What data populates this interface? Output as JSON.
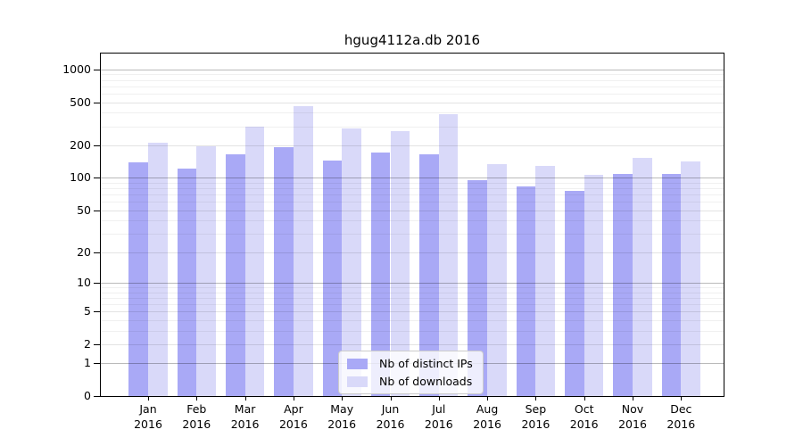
{
  "title": "hgug4112a.db 2016",
  "chart_data": {
    "type": "bar",
    "title": "hgug4112a.db 2016",
    "categories": [
      "Jan",
      "Feb",
      "Mar",
      "Apr",
      "May",
      "Jun",
      "Jul",
      "Aug",
      "Sep",
      "Oct",
      "Nov",
      "Dec"
    ],
    "x_year": "2016",
    "series": [
      {
        "name": "Nb of distinct IPs",
        "color": "#a9a9f6",
        "values": [
          140,
          122,
          164,
          194,
          144,
          172,
          164,
          96,
          84,
          76,
          108,
          108
        ]
      },
      {
        "name": "Nb of downloads",
        "color": "#d9d9f9",
        "values": [
          210,
          197,
          299,
          459,
          288,
          271,
          389,
          134,
          128,
          107,
          154,
          142
        ]
      }
    ],
    "yscale": "log1p",
    "ylim": [
      0,
      1400
    ],
    "yticks": [
      0,
      1,
      2,
      5,
      10,
      20,
      50,
      100,
      200,
      500,
      1000
    ],
    "minor_yticks": [
      3,
      4,
      6,
      7,
      8,
      9,
      30,
      40,
      60,
      70,
      80,
      90,
      300,
      400,
      600,
      700,
      800,
      900
    ],
    "decade_ticks": [
      1,
      10,
      100,
      1000
    ],
    "grid": true,
    "legend_position": "lower center",
    "xlabel": "",
    "ylabel": ""
  }
}
